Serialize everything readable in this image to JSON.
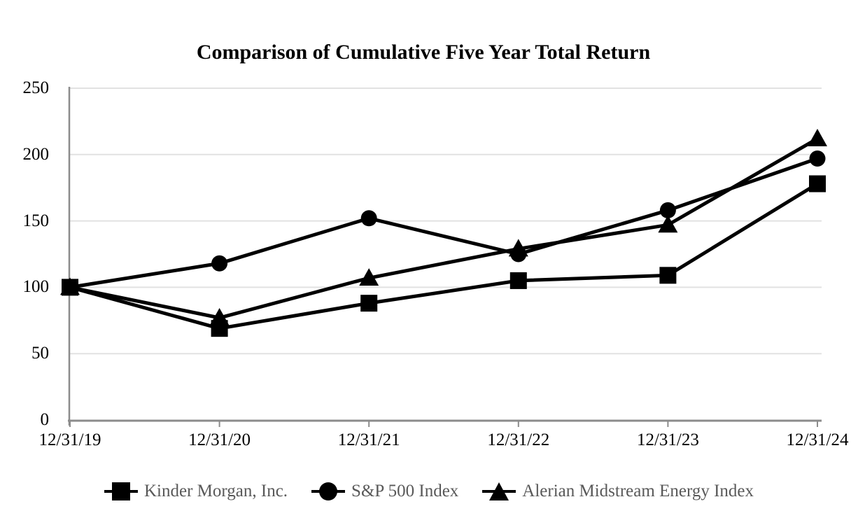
{
  "chart_data": {
    "type": "line",
    "title": "Comparison of Cumulative Five Year Total Return",
    "categories": [
      "12/31/19",
      "12/31/20",
      "12/31/21",
      "12/31/22",
      "12/31/23",
      "12/31/24"
    ],
    "series": [
      {
        "name": "Kinder Morgan, Inc.",
        "marker": "square",
        "values": [
          100,
          69,
          88,
          105,
          109,
          178
        ]
      },
      {
        "name": "S&P 500 Index",
        "marker": "circle",
        "values": [
          100,
          118,
          152,
          125,
          158,
          197
        ]
      },
      {
        "name": "Alerian Midstream Energy Index",
        "marker": "triangle",
        "values": [
          100,
          77,
          107,
          129,
          147,
          212
        ]
      }
    ],
    "y_tick_labels": [
      "250",
      "200",
      "150",
      "100",
      "50",
      "0"
    ],
    "y_ticks": [
      250,
      200,
      150,
      100,
      50,
      0
    ],
    "ylim": [
      0,
      250
    ],
    "grid": "horizontal",
    "legend_position": "bottom",
    "colors": {
      "series_line": "#000000",
      "marker_fill": "#000000",
      "gridline": "#e2e2e2",
      "axis_line": "#8c8c8c",
      "title_text": "#000000",
      "tick_text": "#000000",
      "legend_text": "#595959"
    }
  }
}
